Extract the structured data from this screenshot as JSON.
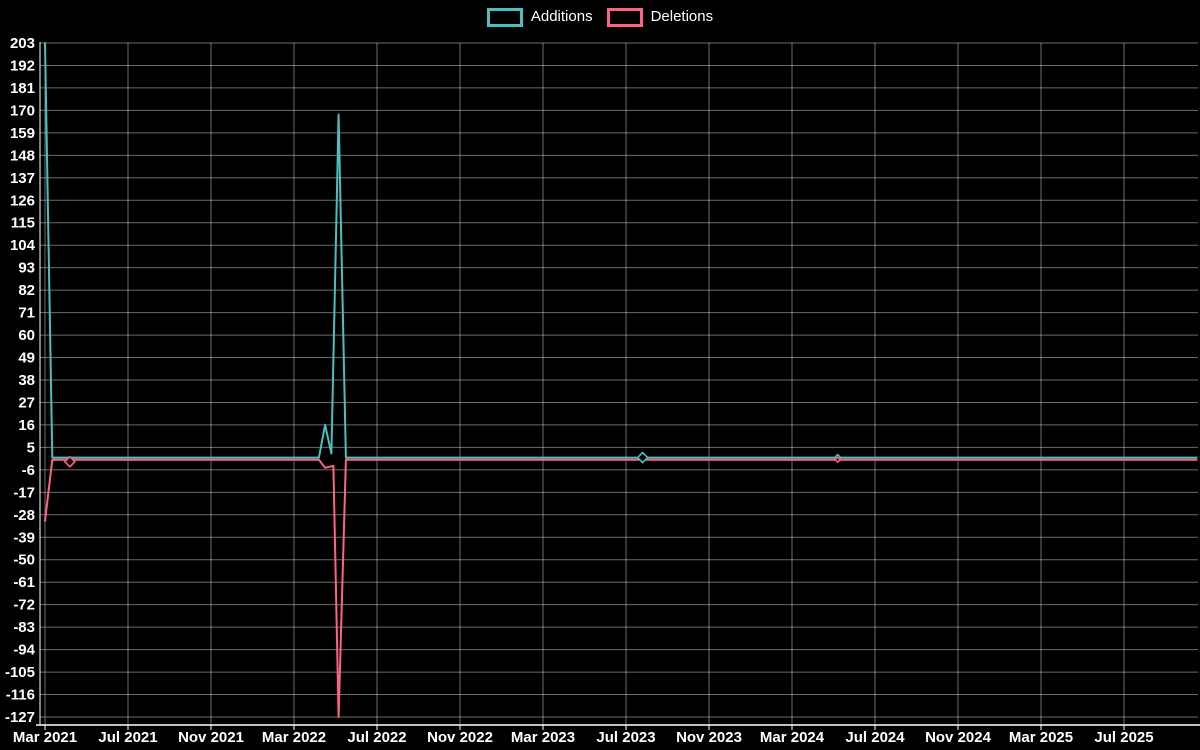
{
  "legend": [
    {
      "label": "Additions",
      "color": "#4bc0c0"
    },
    {
      "label": "Deletions",
      "color": "#ff6384"
    }
  ],
  "colors": {
    "background": "#000000",
    "text": "#ffffff",
    "grid": "rgba(255,255,255,0.42)",
    "axis": "#ffffff",
    "additions": "#4bc0c0",
    "deletions": "#ff6384"
  },
  "chart_data": {
    "type": "line",
    "title": "",
    "xlabel": "",
    "ylabel": "",
    "grid": true,
    "legend_position": "top-center",
    "ylim": [
      -127,
      203
    ],
    "y_ticks": [
      203,
      192,
      181,
      170,
      159,
      148,
      137,
      126,
      115,
      104,
      93,
      82,
      71,
      60,
      49,
      38,
      27,
      16,
      5,
      -6,
      -17,
      -28,
      -39,
      -50,
      -61,
      -72,
      -83,
      -94,
      -105,
      -116,
      -127
    ],
    "x_unit": "months since Mar 2021",
    "x_ticks": [
      {
        "label": "Mar 2021",
        "t": 0
      },
      {
        "label": "Jul 2021",
        "t": 4
      },
      {
        "label": "Nov 2021",
        "t": 8
      },
      {
        "label": "Mar 2022",
        "t": 12
      },
      {
        "label": "Jul 2022",
        "t": 16
      },
      {
        "label": "Nov 2022",
        "t": 20
      },
      {
        "label": "Mar 2023",
        "t": 24
      },
      {
        "label": "Jul 2023",
        "t": 28
      },
      {
        "label": "Nov 2023",
        "t": 32
      },
      {
        "label": "Mar 2024",
        "t": 36
      },
      {
        "label": "Jul 2024",
        "t": 40
      },
      {
        "label": "Nov 2024",
        "t": 44
      },
      {
        "label": "Mar 2025",
        "t": 48
      },
      {
        "label": "Jul 2025",
        "t": 52
      }
    ],
    "series": [
      {
        "name": "Additions",
        "color": "#4bc0c0",
        "points": [
          [
            0,
            203
          ],
          [
            0.35,
            0
          ],
          [
            13.2,
            0
          ],
          [
            13.5,
            16
          ],
          [
            13.8,
            2
          ],
          [
            14.15,
            168
          ],
          [
            14.5,
            0
          ],
          [
            55.5,
            0
          ]
        ]
      },
      {
        "name": "Deletions",
        "color": "#ff6384",
        "points": [
          [
            0,
            -31
          ],
          [
            0.35,
            -1
          ],
          [
            13.2,
            -1
          ],
          [
            13.5,
            -5
          ],
          [
            13.9,
            -4
          ],
          [
            14.15,
            -127
          ],
          [
            14.5,
            -1
          ],
          [
            55.5,
            -1
          ]
        ]
      }
    ],
    "markers": [
      {
        "series": "Deletions",
        "color": "#ff6384",
        "t": 1.2,
        "value": -2,
        "size": 5
      },
      {
        "series": "Additions",
        "color": "#4bc0c0",
        "t": 28.8,
        "value": 0,
        "size": 5
      },
      {
        "series": "Additions",
        "color": "#4bc0c0",
        "t": 38.2,
        "value": 0,
        "size": 3
      },
      {
        "series": "Deletions",
        "color": "#ff6384",
        "t": 38.2,
        "value": -1,
        "size": 2.5
      }
    ],
    "annotations": []
  }
}
